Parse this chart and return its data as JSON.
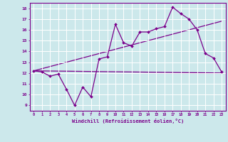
{
  "xlabel": "Windchill (Refroidissement éolien,°C)",
  "background_color": "#cce8eb",
  "grid_color": "#ffffff",
  "line_color": "#7b008b",
  "xlim": [
    -0.5,
    23.5
  ],
  "ylim": [
    8.5,
    18.5
  ],
  "xticks": [
    0,
    1,
    2,
    3,
    4,
    5,
    6,
    7,
    8,
    9,
    10,
    11,
    12,
    13,
    14,
    15,
    16,
    17,
    18,
    19,
    20,
    21,
    22,
    23
  ],
  "yticks": [
    9,
    10,
    11,
    12,
    13,
    14,
    15,
    16,
    17,
    18
  ],
  "main_x": [
    0,
    1,
    2,
    3,
    4,
    5,
    6,
    7,
    8,
    9,
    10,
    11,
    12,
    13,
    14,
    15,
    16,
    17,
    18,
    19,
    20,
    21,
    22,
    23
  ],
  "main_y": [
    12.2,
    12.1,
    11.7,
    11.9,
    10.5,
    9.0,
    10.7,
    9.8,
    13.3,
    13.5,
    16.5,
    14.8,
    14.5,
    15.8,
    15.8,
    16.1,
    16.3,
    18.1,
    17.5,
    17.0,
    16.0,
    13.8,
    13.4,
    12.1
  ],
  "trend1_x": [
    0,
    23
  ],
  "trend1_y": [
    12.2,
    16.8
  ],
  "trend2_x": [
    0,
    23
  ],
  "trend2_y": [
    12.2,
    12.0
  ]
}
